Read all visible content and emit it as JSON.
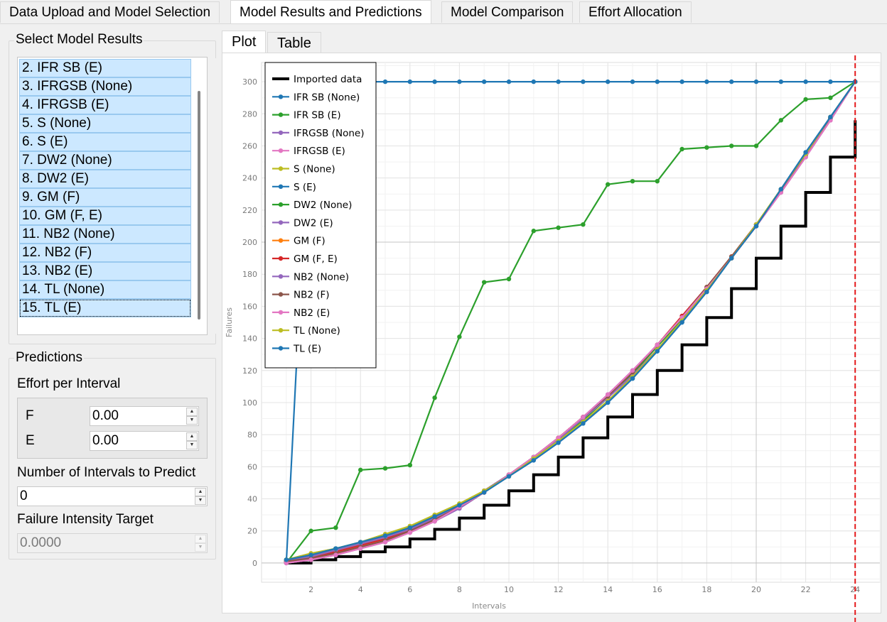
{
  "tabs": [
    "Data Upload and Model Selection",
    "Model Results and Predictions",
    "Model Comparison",
    "Effort Allocation"
  ],
  "active_tab": 1,
  "select_group": {
    "title": "Select Model Results",
    "items": [
      "2. IFR SB (E)",
      "3. IFRGSB (None)",
      "4. IFRGSB (E)",
      "5. S (None)",
      "6. S (E)",
      "7. DW2 (None)",
      "8. DW2 (E)",
      "9. GM (F)",
      "10. GM (F, E)",
      "11. NB2 (None)",
      "12. NB2 (F)",
      "13. NB2 (E)",
      "14. TL (None)",
      "15. TL (E)"
    ]
  },
  "predictions": {
    "title": "Predictions",
    "effort_label": "Effort per Interval",
    "f_label": "F",
    "f_value": "0.00",
    "e_label": "E",
    "e_value": "0.00",
    "intervals_label": "Number of Intervals to Predict",
    "intervals_value": "0",
    "fit_label": "Failure Intensity Target",
    "fit_value": "0.0000"
  },
  "plot_tabs": [
    "Plot",
    "Table"
  ],
  "chart_data": {
    "type": "line",
    "xlabel": "Intervals",
    "ylabel": "Failures",
    "xlim": [
      0,
      25
    ],
    "ylim": [
      -12,
      312
    ],
    "xticks": [
      2,
      4,
      6,
      8,
      10,
      12,
      14,
      16,
      18,
      20,
      22,
      24
    ],
    "yticks": [
      0,
      20,
      40,
      60,
      80,
      100,
      120,
      140,
      160,
      180,
      200,
      220,
      240,
      260,
      280,
      300
    ],
    "grid": true,
    "legend_position": "top-left",
    "vline": {
      "x": 24,
      "color": "#e41a1c",
      "style": "dashed"
    },
    "imported": {
      "name": "Imported data",
      "color": "#000000",
      "x": [
        1,
        2,
        3,
        4,
        5,
        6,
        7,
        8,
        9,
        10,
        11,
        12,
        13,
        14,
        15,
        16,
        17,
        18,
        19,
        20,
        21,
        22,
        23,
        24
      ],
      "y": [
        0,
        2,
        4,
        7,
        10,
        15,
        21,
        28,
        36,
        45,
        55,
        66,
        78,
        91,
        105,
        120,
        136,
        153,
        171,
        190,
        210,
        231,
        253,
        276
      ]
    },
    "series": [
      {
        "name": "IFR SB (None)",
        "color": "#1f77b4",
        "x": [
          1,
          2,
          3,
          4,
          5,
          6,
          7,
          8,
          9,
          10,
          11,
          12,
          13,
          14,
          15,
          16,
          17,
          18,
          19,
          20,
          21,
          22,
          23,
          24
        ],
        "y": [
          0,
          300,
          300,
          300,
          300,
          300,
          300,
          300,
          300,
          300,
          300,
          300,
          300,
          300,
          300,
          300,
          300,
          300,
          300,
          300,
          300,
          300,
          300,
          300
        ]
      },
      {
        "name": "IFR SB (E)",
        "color": "#2ca02c",
        "x": [
          1,
          2,
          3,
          4,
          5,
          6,
          7,
          8,
          9,
          10,
          11,
          12,
          13,
          14,
          15,
          16,
          17,
          18,
          19,
          20,
          21,
          22,
          23,
          24
        ],
        "y": [
          0,
          20,
          22,
          58,
          59,
          61,
          103,
          141,
          175,
          177,
          207,
          209,
          211,
          236,
          238,
          238,
          258,
          259,
          260,
          260,
          276,
          289,
          290,
          300
        ]
      },
      {
        "name": "IFRGSB (None)",
        "color": "#9467bd",
        "x": [
          1,
          2,
          3,
          4,
          5,
          6,
          7,
          8,
          9,
          10,
          11,
          12,
          13,
          14,
          15,
          16,
          17,
          18,
          19,
          20,
          21,
          22,
          23,
          24
        ],
        "y": [
          1,
          4,
          8,
          12,
          16,
          21,
          28,
          36,
          45,
          55,
          66,
          77,
          90,
          103,
          117,
          133,
          151,
          170,
          190,
          211,
          232,
          254,
          277,
          300
        ]
      },
      {
        "name": "IFRGSB (E)",
        "color": "#e377c2",
        "x": [
          1,
          2,
          3,
          4,
          5,
          6,
          7,
          8,
          9,
          10,
          11,
          12,
          13,
          14,
          15,
          16,
          17,
          18,
          19,
          20,
          21,
          22,
          23,
          24
        ],
        "y": [
          0,
          2,
          5,
          9,
          14,
          19,
          26,
          35,
          44,
          55,
          66,
          78,
          91,
          105,
          120,
          136,
          153,
          171,
          190,
          210,
          231,
          253,
          276,
          300
        ]
      },
      {
        "name": "S (None)",
        "color": "#bcbd22",
        "x": [
          1,
          2,
          3,
          4,
          5,
          6,
          7,
          8,
          9,
          10,
          11,
          12,
          13,
          14,
          15,
          16,
          17,
          18,
          19,
          20,
          21,
          22,
          23,
          24
        ],
        "y": [
          2,
          6,
          9,
          13,
          18,
          23,
          30,
          37,
          45,
          54,
          65,
          76,
          88,
          101,
          116,
          133,
          151,
          170,
          190,
          211,
          233,
          255,
          278,
          300
        ]
      },
      {
        "name": "S (E)",
        "color": "#1f77b4",
        "x": [
          1,
          2,
          3,
          4,
          5,
          6,
          7,
          8,
          9,
          10,
          11,
          12,
          13,
          14,
          15,
          16,
          17,
          18,
          19,
          20,
          21,
          22,
          23,
          24
        ],
        "y": [
          2,
          5,
          9,
          13,
          17,
          22,
          29,
          36,
          44,
          54,
          64,
          75,
          87,
          100,
          115,
          132,
          150,
          169,
          190,
          210,
          233,
          256,
          278,
          300
        ]
      },
      {
        "name": "DW2 (None)",
        "color": "#2ca02c",
        "x": [
          1,
          2,
          3,
          4,
          5,
          6,
          7,
          8,
          9,
          10,
          11,
          12,
          13,
          14,
          15,
          16,
          17,
          18,
          19,
          20,
          21,
          22,
          23,
          24
        ],
        "y": [
          1,
          4,
          8,
          12,
          16,
          21,
          28,
          36,
          45,
          55,
          65,
          77,
          89,
          103,
          118,
          135,
          152,
          171,
          190,
          210,
          232,
          254,
          277,
          300
        ]
      },
      {
        "name": "DW2 (E)",
        "color": "#9467bd",
        "x": [
          1,
          2,
          3,
          4,
          5,
          6,
          7,
          8,
          9,
          10,
          11,
          12,
          13,
          14,
          15,
          16,
          17,
          18,
          19,
          20,
          21,
          22,
          23,
          24
        ],
        "y": [
          0,
          2,
          5,
          9,
          13,
          19,
          26,
          34,
          44,
          55,
          66,
          78,
          91,
          105,
          120,
          136,
          153,
          171,
          190,
          210,
          231,
          253,
          276,
          300
        ]
      },
      {
        "name": "GM (F)",
        "color": "#ff7f0e",
        "x": [
          1,
          2,
          3,
          4,
          5,
          6,
          7,
          8,
          9,
          10,
          11,
          12,
          13,
          14,
          15,
          16,
          17,
          18,
          19,
          20,
          21,
          22,
          23,
          24
        ],
        "y": [
          1,
          3,
          6,
          10,
          14,
          20,
          27,
          35,
          44,
          55,
          66,
          78,
          91,
          104,
          119,
          136,
          153,
          172,
          191,
          211,
          232,
          254,
          277,
          300
        ]
      },
      {
        "name": "GM (F, E)",
        "color": "#d62728",
        "x": [
          1,
          2,
          3,
          4,
          5,
          6,
          7,
          8,
          9,
          10,
          11,
          12,
          13,
          14,
          15,
          16,
          17,
          18,
          19,
          20,
          21,
          22,
          23,
          24
        ],
        "y": [
          1,
          3,
          7,
          11,
          15,
          21,
          28,
          36,
          45,
          55,
          66,
          78,
          91,
          104,
          119,
          136,
          154,
          172,
          191,
          211,
          232,
          254,
          277,
          300
        ]
      },
      {
        "name": "NB2 (None)",
        "color": "#9467bd",
        "x": [
          1,
          2,
          3,
          4,
          5,
          6,
          7,
          8,
          9,
          10,
          11,
          12,
          13,
          14,
          15,
          16,
          17,
          18,
          19,
          20,
          21,
          22,
          23,
          24
        ],
        "y": [
          1,
          4,
          8,
          12,
          16,
          21,
          28,
          36,
          45,
          55,
          66,
          77,
          90,
          103,
          117,
          133,
          151,
          170,
          190,
          211,
          232,
          254,
          277,
          300
        ]
      },
      {
        "name": "NB2 (F)",
        "color": "#8c564b",
        "x": [
          1,
          2,
          3,
          4,
          5,
          6,
          7,
          8,
          9,
          10,
          11,
          12,
          13,
          14,
          15,
          16,
          17,
          18,
          19,
          20,
          21,
          22,
          23,
          24
        ],
        "y": [
          1,
          3,
          6,
          10,
          14,
          20,
          27,
          35,
          44,
          55,
          66,
          78,
          91,
          104,
          119,
          136,
          153,
          172,
          191,
          211,
          232,
          254,
          277,
          300
        ]
      },
      {
        "name": "NB2 (E)",
        "color": "#e377c2",
        "x": [
          1,
          2,
          3,
          4,
          5,
          6,
          7,
          8,
          9,
          10,
          11,
          12,
          13,
          14,
          15,
          16,
          17,
          18,
          19,
          20,
          21,
          22,
          23,
          24
        ],
        "y": [
          0,
          2,
          5,
          9,
          13,
          19,
          26,
          35,
          44,
          55,
          66,
          78,
          91,
          105,
          120,
          136,
          153,
          171,
          190,
          210,
          231,
          253,
          276,
          300
        ]
      },
      {
        "name": "TL (None)",
        "color": "#bcbd22",
        "x": [
          1,
          2,
          3,
          4,
          5,
          6,
          7,
          8,
          9,
          10,
          11,
          12,
          13,
          14,
          15,
          16,
          17,
          18,
          19,
          20,
          21,
          22,
          23,
          24
        ],
        "y": [
          2,
          6,
          9,
          13,
          18,
          23,
          30,
          37,
          45,
          54,
          65,
          76,
          88,
          101,
          116,
          133,
          151,
          170,
          190,
          211,
          233,
          255,
          278,
          300
        ]
      },
      {
        "name": "TL (E)",
        "color": "#1f77b4",
        "x": [
          1,
          2,
          3,
          4,
          5,
          6,
          7,
          8,
          9,
          10,
          11,
          12,
          13,
          14,
          15,
          16,
          17,
          18,
          19,
          20,
          21,
          22,
          23,
          24
        ],
        "y": [
          2,
          5,
          9,
          13,
          17,
          22,
          29,
          36,
          44,
          54,
          64,
          75,
          87,
          100,
          115,
          132,
          150,
          169,
          190,
          210,
          233,
          256,
          278,
          300
        ]
      }
    ]
  }
}
